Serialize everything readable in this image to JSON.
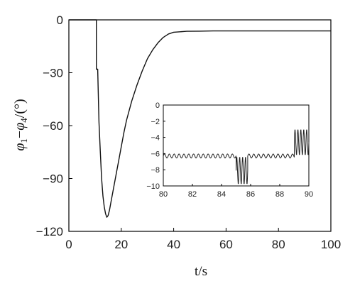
{
  "chart_data": [
    {
      "type": "line",
      "title": "",
      "xlabel": "t/s",
      "ylabel": "φ1−φ4/(°)",
      "ylabel_parts": {
        "a": "φ",
        "a_sub": "1",
        "dash": "−",
        "b": "φ",
        "b_sub": "4",
        "unit": "/(°)"
      },
      "xlim": [
        0,
        100
      ],
      "ylim": [
        -120,
        0
      ],
      "xticks": [
        0,
        20,
        40,
        60,
        80,
        100
      ],
      "yticks": [
        0,
        -30,
        -60,
        -90,
        -120
      ],
      "grid": false,
      "series": [
        {
          "x": [
            0,
            10,
            10.5,
            10.5,
            11,
            11.5,
            12,
            12.5,
            13,
            13.5,
            14,
            14.5,
            15,
            15.5,
            16,
            17,
            18,
            19,
            20,
            21,
            22,
            24,
            26,
            28,
            30,
            32,
            34,
            36,
            38,
            40,
            45,
            50,
            55,
            60,
            65,
            70,
            75,
            80,
            85,
            90,
            95,
            100
          ],
          "y": [
            0,
            0,
            0,
            -28,
            -28,
            -58,
            -75,
            -90,
            -100,
            -106,
            -110,
            -112,
            -111,
            -108,
            -104,
            -96,
            -88,
            -80,
            -72,
            -64,
            -57,
            -46,
            -37,
            -29,
            -22,
            -17,
            -13,
            -10,
            -8,
            -7,
            -6.5,
            -6.4,
            -6.3,
            -6.3,
            -6.3,
            -6.3,
            -6.3,
            -6.3,
            -6.3,
            -6.3,
            -6.3,
            -6.3
          ]
        }
      ]
    },
    {
      "type": "line",
      "title": "",
      "xlabel": "",
      "ylabel": "",
      "xlim": [
        80,
        90
      ],
      "ylim": [
        -10,
        0
      ],
      "xticks": [
        80,
        82,
        84,
        86,
        88,
        90
      ],
      "yticks": [
        0,
        -2,
        -4,
        -6,
        -8,
        -10
      ],
      "grid": false,
      "series": [
        {
          "segments": [
            {
              "x_start": 80,
              "x_end": 85,
              "y_mean": -6.3,
              "amplitude": 0.25,
              "period": 0.333
            },
            {
              "x_start": 85,
              "x_end": 85.8,
              "y_mean": -8.1,
              "amplitude": 1.7,
              "period": 0.2
            },
            {
              "x_start": 85.8,
              "x_end": 89,
              "y_mean": -6.3,
              "amplitude": 0.25,
              "period": 0.333
            },
            {
              "x_start": 89,
              "x_end": 90,
              "y_mean": -4.6,
              "amplitude": 1.6,
              "period": 0.2
            }
          ]
        }
      ]
    }
  ]
}
